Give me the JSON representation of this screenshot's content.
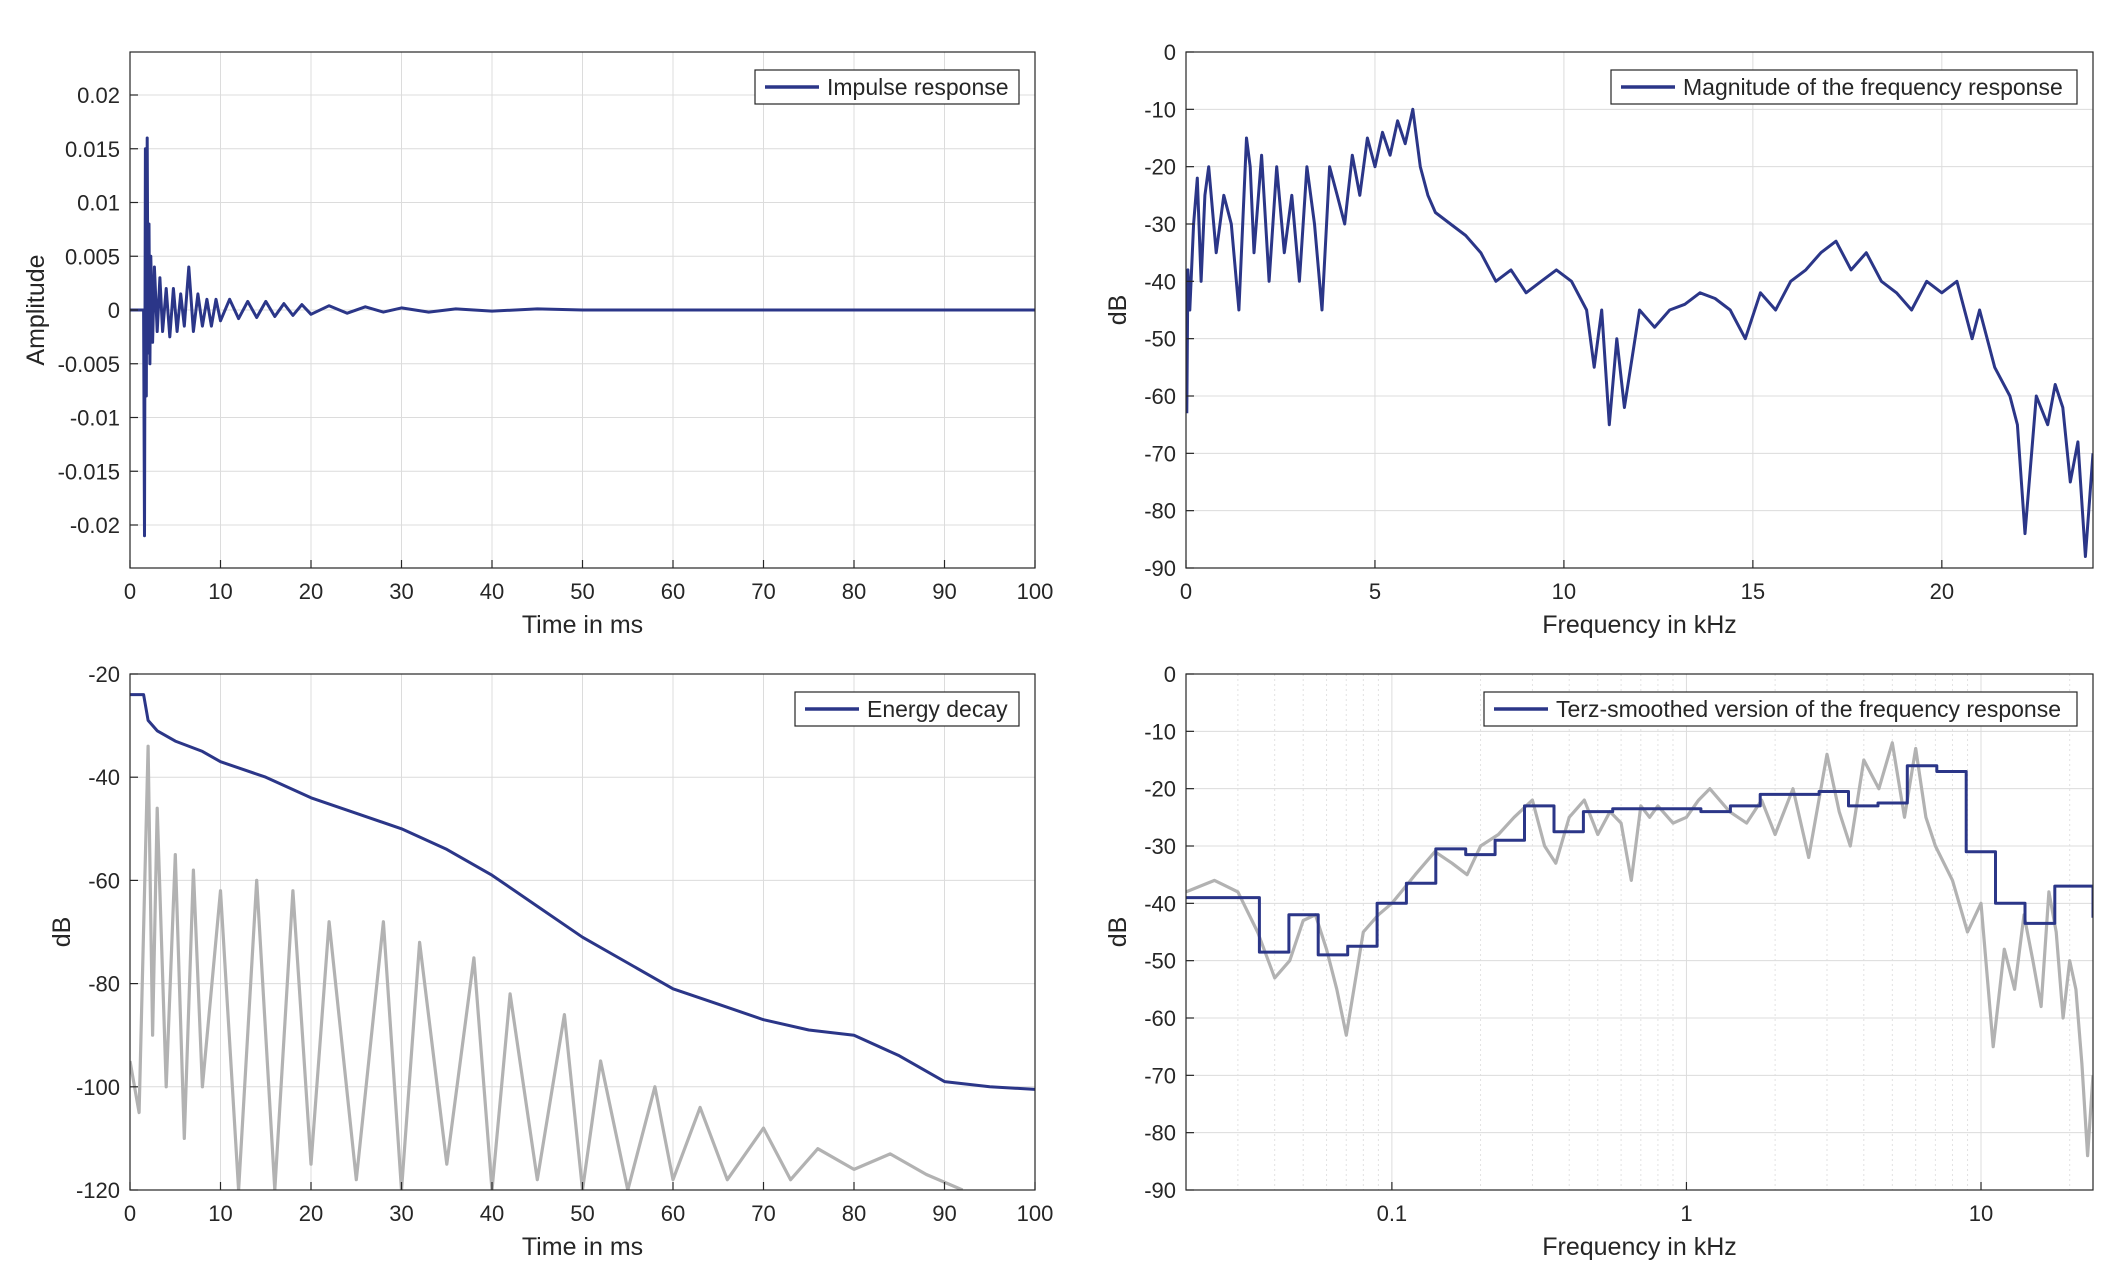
{
  "chart_data": [
    {
      "id": "impulse",
      "type": "line",
      "xlabel": "Time in ms",
      "ylabel": "Amplitude",
      "xlim": [
        0,
        100
      ],
      "ylim": [
        -0.024,
        0.024
      ],
      "xscale": "linear",
      "xticks": [
        0,
        10,
        20,
        30,
        40,
        50,
        60,
        70,
        80,
        90,
        100
      ],
      "xticklabels": [
        "0",
        "10",
        "20",
        "30",
        "40",
        "50",
        "60",
        "70",
        "80",
        "90",
        "100"
      ],
      "yticks": [
        0.02,
        0.015,
        0.01,
        0.005,
        0,
        -0.005,
        -0.01,
        -0.015,
        -0.02
      ],
      "yticklabels": [
        "0.02",
        "0.015",
        "0.01",
        "0.005",
        "0",
        "-0.005",
        "-0.01",
        "-0.015",
        "-0.02"
      ],
      "grid": true,
      "legend": {
        "placement": "top-right",
        "entries": [
          "Impulse response"
        ]
      },
      "series": [
        {
          "name": "Impulse response",
          "color": "#2b3688",
          "x": [
            0,
            1.5,
            1.6,
            1.7,
            1.8,
            1.9,
            2.0,
            2.1,
            2.2,
            2.3,
            2.5,
            2.7,
            3.0,
            3.3,
            3.6,
            4.0,
            4.4,
            4.8,
            5.2,
            5.6,
            6.0,
            6.5,
            7.0,
            7.5,
            8,
            8.5,
            9,
            9.5,
            10,
            11,
            12,
            13,
            14,
            15,
            16,
            17,
            18,
            19,
            20,
            22,
            24,
            26,
            28,
            30,
            33,
            36,
            40,
            45,
            50,
            60,
            70,
            80,
            90,
            100
          ],
          "y": [
            0,
            0,
            -0.021,
            0.015,
            -0.008,
            0.016,
            -0.004,
            0.008,
            -0.005,
            0.005,
            -0.003,
            0.004,
            -0.002,
            0.003,
            -0.002,
            0.002,
            -0.0025,
            0.002,
            -0.002,
            0.0015,
            -0.0015,
            0.004,
            -0.002,
            0.0015,
            -0.0015,
            0.001,
            -0.0015,
            0.001,
            -0.001,
            0.001,
            -0.0008,
            0.0008,
            -0.0007,
            0.0008,
            -0.0006,
            0.0006,
            -0.0005,
            0.0005,
            -0.0004,
            0.0004,
            -0.0003,
            0.0003,
            -0.0002,
            0.0002,
            -0.0002,
            0.0001,
            -0.0001,
            0.0001,
            0,
            0,
            0,
            0,
            0,
            0
          ]
        }
      ]
    },
    {
      "id": "magnitude",
      "type": "line",
      "xlabel": "Frequency in kHz",
      "ylabel": "dB",
      "xlim": [
        0,
        24
      ],
      "ylim": [
        -90,
        0
      ],
      "xscale": "linear",
      "xticks": [
        0,
        5,
        10,
        15,
        20
      ],
      "xticklabels": [
        "0",
        "5",
        "10",
        "15",
        "20"
      ],
      "yticks": [
        0,
        -10,
        -20,
        -30,
        -40,
        -50,
        -60,
        -70,
        -80,
        -90
      ],
      "yticklabels": [
        "0",
        "-10",
        "-20",
        "-30",
        "-40",
        "-50",
        "-60",
        "-70",
        "-80",
        "-90"
      ],
      "grid": true,
      "legend": {
        "placement": "top-right",
        "entries": [
          "Magnitude of the frequency response"
        ]
      },
      "series": [
        {
          "name": "Magnitude of the frequency response",
          "color": "#2b3688",
          "x": [
            0.02,
            0.05,
            0.1,
            0.2,
            0.3,
            0.4,
            0.5,
            0.6,
            0.8,
            1.0,
            1.2,
            1.4,
            1.6,
            1.7,
            1.8,
            2.0,
            2.2,
            2.4,
            2.6,
            2.8,
            3.0,
            3.2,
            3.4,
            3.6,
            3.8,
            4.0,
            4.2,
            4.4,
            4.6,
            4.8,
            5.0,
            5.2,
            5.4,
            5.6,
            5.8,
            6.0,
            6.2,
            6.4,
            6.6,
            7.0,
            7.4,
            7.8,
            8.2,
            8.6,
            9.0,
            9.4,
            9.8,
            10.2,
            10.6,
            10.8,
            11.0,
            11.2,
            11.4,
            11.6,
            12.0,
            12.4,
            12.8,
            13.2,
            13.6,
            14.0,
            14.4,
            14.8,
            15.2,
            15.6,
            16.0,
            16.4,
            16.8,
            17.2,
            17.6,
            18.0,
            18.4,
            18.8,
            19.2,
            19.6,
            20.0,
            20.4,
            20.8,
            21.0,
            21.4,
            21.8,
            22.0,
            22.2,
            22.5,
            22.8,
            23.0,
            23.2,
            23.4,
            23.6,
            23.8,
            24.0
          ],
          "y": [
            -63,
            -38,
            -45,
            -30,
            -22,
            -40,
            -25,
            -20,
            -35,
            -25,
            -30,
            -45,
            -15,
            -20,
            -35,
            -18,
            -40,
            -20,
            -35,
            -25,
            -40,
            -20,
            -30,
            -45,
            -20,
            -25,
            -30,
            -18,
            -25,
            -15,
            -20,
            -14,
            -18,
            -12,
            -16,
            -10,
            -20,
            -25,
            -28,
            -30,
            -32,
            -35,
            -40,
            -38,
            -42,
            -40,
            -38,
            -40,
            -45,
            -55,
            -45,
            -65,
            -50,
            -62,
            -45,
            -48,
            -45,
            -44,
            -42,
            -43,
            -45,
            -50,
            -42,
            -45,
            -40,
            -38,
            -35,
            -33,
            -38,
            -35,
            -40,
            -42,
            -45,
            -40,
            -42,
            -40,
            -50,
            -45,
            -55,
            -60,
            -65,
            -84,
            -60,
            -65,
            -58,
            -62,
            -75,
            -68,
            -88,
            -70
          ]
        }
      ]
    },
    {
      "id": "energy",
      "type": "line",
      "xlabel": "Time in ms",
      "ylabel": "dB",
      "xlim": [
        0,
        100
      ],
      "ylim": [
        -120,
        -20
      ],
      "xscale": "linear",
      "xticks": [
        0,
        10,
        20,
        30,
        40,
        50,
        60,
        70,
        80,
        90,
        100
      ],
      "xticklabels": [
        "0",
        "10",
        "20",
        "30",
        "40",
        "50",
        "60",
        "70",
        "80",
        "90",
        "100"
      ],
      "yticks": [
        -20,
        -40,
        -60,
        -80,
        -100,
        -120
      ],
      "yticklabels": [
        "-20",
        "-40",
        "-60",
        "-80",
        "-100",
        "-120"
      ],
      "grid": true,
      "legend": {
        "placement": "top-right",
        "entries": [
          "Energy decay"
        ]
      },
      "series": [
        {
          "name": "Energy decay",
          "color": "#2b3688",
          "x": [
            0,
            1.5,
            2,
            3,
            5,
            8,
            10,
            15,
            20,
            25,
            30,
            35,
            40,
            45,
            50,
            55,
            60,
            65,
            70,
            75,
            80,
            85,
            90,
            95,
            100
          ],
          "y": [
            -24,
            -24,
            -29,
            -31,
            -33,
            -35,
            -37,
            -40,
            -44,
            -47,
            -50,
            -54,
            -59,
            -65,
            -71,
            -76,
            -81,
            -84,
            -87,
            -89,
            -90,
            -94,
            -99,
            -100,
            -100.5
          ]
        },
        {
          "color": "#b2b2b2",
          "x": [
            0,
            1,
            2,
            2.5,
            3,
            4,
            5,
            6,
            7,
            8,
            10,
            12,
            14,
            16,
            18,
            20,
            22,
            25,
            28,
            30,
            32,
            35,
            38,
            40,
            42,
            45,
            48,
            50,
            52,
            55,
            58,
            60,
            63,
            66,
            70,
            73,
            76,
            80,
            84,
            88,
            92
          ],
          "y": [
            -95,
            -105,
            -34,
            -90,
            -46,
            -100,
            -55,
            -110,
            -58,
            -100,
            -62,
            -120,
            -60,
            -120,
            -62,
            -115,
            -68,
            -118,
            -68,
            -120,
            -72,
            -115,
            -75,
            -120,
            -82,
            -118,
            -86,
            -120,
            -95,
            -120,
            -100,
            -118,
            -104,
            -118,
            -108,
            -118,
            -112,
            -116,
            -113,
            -117,
            -120
          ]
        }
      ]
    },
    {
      "id": "terz",
      "type": "line",
      "xlabel": "Frequency in kHz",
      "ylabel": "dB",
      "xlim": [
        0.02,
        24
      ],
      "ylim": [
        -90,
        0
      ],
      "xscale": "log",
      "xticks": [
        0.1,
        1,
        10
      ],
      "xticklabels": [
        "0.1",
        "1",
        "10"
      ],
      "yticks": [
        0,
        -10,
        -20,
        -30,
        -40,
        -50,
        -60,
        -70,
        -80,
        -90
      ],
      "yticklabels": [
        "0",
        "-10",
        "-20",
        "-30",
        "-40",
        "-50",
        "-60",
        "-70",
        "-80",
        "-90"
      ],
      "grid": true,
      "legend": {
        "placement": "top-right",
        "entries": [
          "Terz-smoothed version of the frequency response"
        ]
      },
      "series": [
        {
          "name": "Terz-smoothed version of the frequency response",
          "color": "#2b3688",
          "bands": [
            0.02,
            0.0355,
            0.0447,
            0.0562,
            0.0708,
            0.0891,
            0.112,
            0.141,
            0.178,
            0.224,
            0.282,
            0.355,
            0.447,
            0.562,
            0.708,
            0.891,
            1.12,
            1.41,
            1.78,
            2.24,
            2.82,
            3.55,
            4.47,
            5.62,
            7.08,
            8.91,
            11.2,
            14.1,
            17.8,
            24
          ],
          "levels": [
            -39,
            -48.5,
            -42,
            -49,
            -47.5,
            -40,
            -36.5,
            -30.5,
            -31.5,
            -29,
            -23,
            -27.5,
            -24,
            -23.5,
            -23.5,
            -23.5,
            -24,
            -23,
            -21,
            -21,
            -20.5,
            -23,
            -22.5,
            -16,
            -17,
            -31,
            -40,
            -43.5,
            -37,
            -42.5
          ]
        },
        {
          "color": "#b2b2b2",
          "x": [
            0.02,
            0.025,
            0.03,
            0.035,
            0.04,
            0.045,
            0.05,
            0.055,
            0.06,
            0.065,
            0.07,
            0.08,
            0.09,
            0.1,
            0.12,
            0.14,
            0.16,
            0.18,
            0.2,
            0.23,
            0.26,
            0.3,
            0.33,
            0.36,
            0.4,
            0.45,
            0.5,
            0.55,
            0.6,
            0.65,
            0.7,
            0.75,
            0.8,
            0.9,
            1.0,
            1.1,
            1.2,
            1.4,
            1.6,
            1.8,
            2.0,
            2.3,
            2.6,
            3.0,
            3.3,
            3.6,
            4.0,
            4.5,
            5.0,
            5.5,
            6.0,
            6.5,
            7.0,
            8.0,
            9.0,
            10,
            11,
            12,
            13,
            14,
            15,
            16,
            17,
            18,
            19,
            20,
            21,
            22,
            23,
            24
          ],
          "y": [
            -38,
            -36,
            -38,
            -45,
            -53,
            -50,
            -43,
            -42,
            -48,
            -55,
            -63,
            -45,
            -42,
            -40,
            -35,
            -31,
            -33,
            -35,
            -30,
            -28,
            -25,
            -22,
            -30,
            -33,
            -25,
            -22,
            -28,
            -24,
            -26,
            -36,
            -23,
            -25,
            -23,
            -26,
            -25,
            -22,
            -20,
            -24,
            -26,
            -22,
            -28,
            -20,
            -32,
            -14,
            -24,
            -30,
            -15,
            -20,
            -12,
            -25,
            -13,
            -25,
            -30,
            -36,
            -45,
            -40,
            -65,
            -48,
            -55,
            -42,
            -50,
            -58,
            -38,
            -45,
            -60,
            -50,
            -55,
            -68,
            -84,
            -70
          ]
        }
      ]
    }
  ]
}
